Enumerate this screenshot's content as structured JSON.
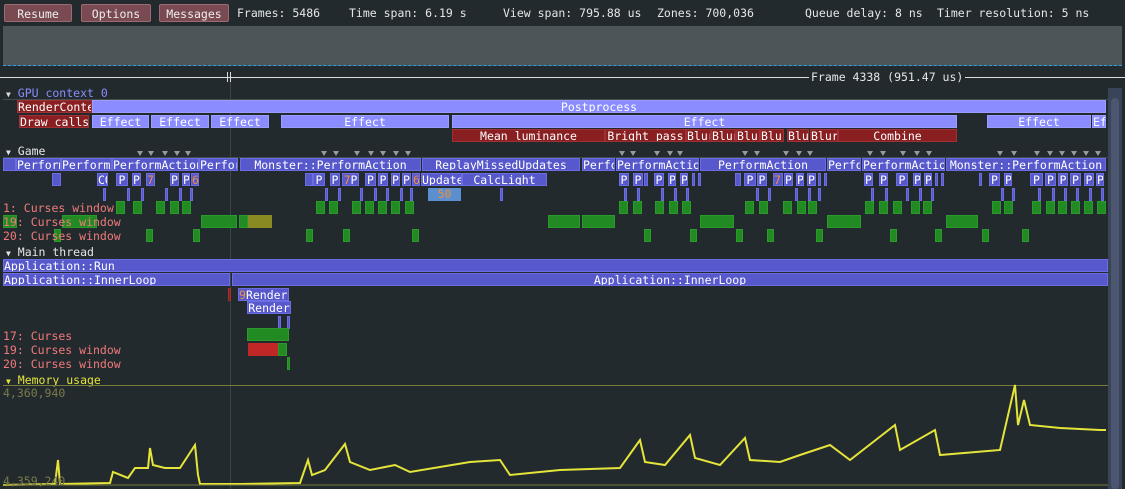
{
  "toolbar": {
    "resume": "Resume",
    "options": "Options",
    "messages": "Messages"
  },
  "stats": {
    "frames": "Frames: 5486",
    "time_span": "Time span: 6.19 s",
    "view_span": "View span: 795.88 us",
    "zones": "Zones: 700,036",
    "queue_delay": "Queue delay: 8 ns",
    "timer_resolution": "Timer resolution: 5 ns"
  },
  "frame_label": "Frame 4338 (951.47 us)",
  "gpu": {
    "title": "GPU context 0",
    "render_context": "RenderContext",
    "postprocess": "Postprocess",
    "draw_calls": "Draw calls",
    "effect": "Effect",
    "effect_short": "Ef",
    "mean_luminance": "Mean luminance",
    "bright_pass": "Bright pass",
    "blur": "Blur",
    "blu": "Blu",
    "combine": "Combine"
  },
  "game": {
    "title": "Game",
    "perform": "PerformAction",
    "monster": "Monster::PerformAction",
    "replay": "ReplayMissedUpdates",
    "update": "Update",
    "calclight": "CalcLight",
    "count50": "50",
    "p": "P",
    "seven": "7",
    "six": "6",
    "co": "CO",
    "threads": [
      "1: Curses window",
      "19: Curses window",
      "20: Curses window"
    ]
  },
  "main": {
    "title": "Main thread",
    "run": "Application::Run",
    "inner": "Application::InnerLoop",
    "render": "Render",
    "nine": "9",
    "threads": [
      "17: Curses",
      "19: Curses window",
      "20: Curses window"
    ]
  },
  "memory": {
    "title": "Memory usage",
    "max": "4,360,940",
    "min": "4,359,240",
    "color": "#e4e43a"
  },
  "colors": {
    "zone": "#5658cc",
    "gpu": "#8a8cff",
    "gpu_red": "#8a1f22",
    "lock": "#228a22",
    "thread_label": "#f07a7a"
  }
}
